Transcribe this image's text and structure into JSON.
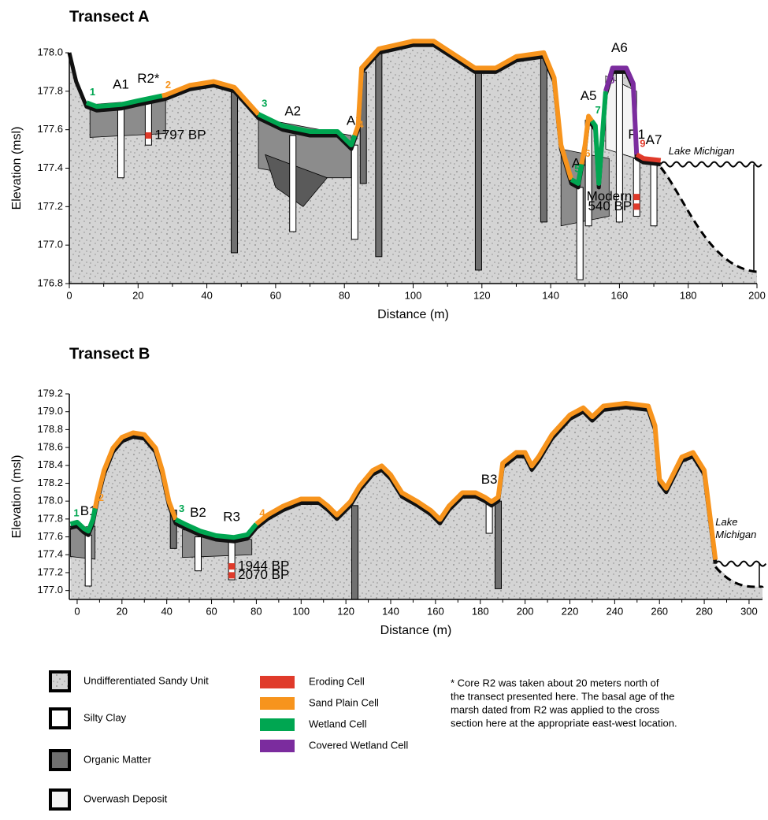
{
  "chart_data": [
    {
      "type": "profile",
      "title": "Transect A",
      "xlabel": "Distance (m)",
      "ylabel": "Elevation (msl)",
      "xlim": [
        0,
        200
      ],
      "ylim": [
        176.8,
        178.0
      ],
      "xticks": [
        0,
        20,
        40,
        60,
        80,
        100,
        120,
        140,
        160,
        180,
        200
      ],
      "yticks": [
        176.8,
        {
          "value": 177,
          "label": "177.0"
        },
        177.2,
        177.4,
        177.6,
        177.8,
        {
          "value": 178,
          "label": "178.0"
        }
      ],
      "surface": {
        "x": [
          0,
          2,
          5,
          8,
          15,
          20,
          28,
          35,
          42,
          48,
          55,
          62,
          70,
          78,
          82,
          84,
          85,
          90,
          100,
          106,
          112,
          118,
          124,
          130,
          138,
          141,
          143,
          146,
          148,
          150,
          151,
          153,
          154,
          156,
          158,
          162,
          164,
          165,
          167,
          172
        ],
        "y": [
          178.0,
          177.85,
          177.72,
          177.7,
          177.71,
          177.73,
          177.76,
          177.81,
          177.83,
          177.8,
          177.66,
          177.6,
          177.57,
          177.57,
          177.5,
          177.6,
          177.9,
          178.0,
          178.04,
          178.04,
          177.97,
          177.9,
          177.9,
          177.96,
          177.98,
          177.85,
          177.5,
          177.32,
          177.3,
          177.5,
          177.65,
          177.6,
          177.3,
          177.78,
          177.9,
          177.9,
          177.82,
          177.45,
          177.43,
          177.42
        ]
      },
      "cells": [
        {
          "label": "1",
          "color": "#00a651",
          "x": [
            5,
            27
          ]
        },
        {
          "label": "2",
          "color": "#f7941d",
          "x": [
            27,
            55
          ]
        },
        {
          "label": "3",
          "color": "#00a651",
          "x": [
            55,
            83
          ]
        },
        {
          "label": "4",
          "color": "#f7941d",
          "x": [
            83,
            146
          ]
        },
        {
          "label": "5",
          "color": "#00a651",
          "x": [
            146,
            149
          ]
        },
        {
          "label": "6",
          "color": "#f7941d",
          "x": [
            149,
            152
          ]
        },
        {
          "label": "7",
          "color": "#00a651",
          "x": [
            152,
            156
          ]
        },
        {
          "label": "8",
          "color": "#7b2c9e",
          "x": [
            156,
            165
          ]
        },
        {
          "label": "9",
          "color": "#e03a2a",
          "x": [
            165,
            172
          ]
        }
      ],
      "deposits": [
        {
          "color": "#8c8c8c",
          "x": [
            6,
            28,
            28,
            6
          ],
          "y": [
            177.73,
            177.76,
            177.58,
            177.56
          ]
        },
        {
          "color": "#8c8c8c",
          "x": [
            55,
            82,
            82,
            70,
            55
          ],
          "y": [
            177.66,
            177.57,
            177.35,
            177.35,
            177.4
          ]
        },
        {
          "color": "#5a5a5a",
          "x": [
            57,
            75,
            68,
            60
          ],
          "y": [
            177.47,
            177.35,
            177.2,
            177.3
          ]
        },
        {
          "color": "#8c8c8c",
          "x": [
            143,
            157,
            157,
            143
          ],
          "y": [
            177.5,
            177.45,
            177.15,
            177.1
          ]
        },
        {
          "color": "#f4f4f4",
          "x": [
            156,
            165,
            165,
            156
          ],
          "y": [
            177.88,
            177.8,
            177.45,
            177.5
          ]
        }
      ],
      "cores": [
        {
          "label": "A1",
          "x": 15,
          "top": 177.71,
          "bottom": 177.35,
          "color": "#ffffff"
        },
        {
          "label": "R2*",
          "x": 23,
          "top": 177.74,
          "bottom": 177.52,
          "color": "#ffffff"
        },
        {
          "label": null,
          "x": 48,
          "top": 177.8,
          "bottom": 176.96,
          "color": "#707070"
        },
        {
          "label": "A2",
          "x": 65,
          "top": 177.57,
          "bottom": 177.07,
          "color": "#ffffff"
        },
        {
          "label": "A3",
          "x": 83,
          "top": 177.52,
          "bottom": 177.03,
          "color": "#ffffff"
        },
        {
          "label": null,
          "x": 85.5,
          "top": 177.9,
          "bottom": 177.32,
          "color": "#707070"
        },
        {
          "label": null,
          "x": 90,
          "top": 178.0,
          "bottom": 176.94,
          "color": "#707070"
        },
        {
          "label": null,
          "x": 119,
          "top": 177.9,
          "bottom": 176.87,
          "color": "#707070"
        },
        {
          "label": null,
          "x": 138,
          "top": 177.98,
          "bottom": 177.12,
          "color": "#707070"
        },
        {
          "label": "A4",
          "x": 148.5,
          "top": 177.3,
          "bottom": 176.82,
          "color": "#ffffff"
        },
        {
          "label": "A5",
          "x": 151,
          "top": 177.65,
          "bottom": 177.1,
          "color": "#ffffff"
        },
        {
          "label": "A6",
          "x": 160,
          "top": 177.9,
          "bottom": 177.12,
          "color": "#ffffff"
        },
        {
          "label": "R1",
          "x": 165,
          "top": 177.45,
          "bottom": 177.15,
          "color": "#ffffff"
        },
        {
          "label": "A7",
          "x": 170,
          "top": 177.42,
          "bottom": 177.1,
          "color": "#ffffff"
        }
      ],
      "dates": [
        {
          "label": "1797 BP",
          "x": 23,
          "y": 177.57
        },
        {
          "label": "Modern",
          "x": 165,
          "y": 177.25
        },
        {
          "label": "540 BP",
          "x": 165,
          "y": 177.2
        }
      ],
      "lake_label": [
        "Lake Michigan"
      ]
    },
    {
      "type": "profile",
      "title": "Transect B",
      "xlabel": "Distance (m)",
      "ylabel": "Elevation (msl)",
      "xlim": [
        -3.5,
        306
      ],
      "ylim": [
        176.9,
        179.2
      ],
      "xticks": [
        0,
        20,
        40,
        60,
        80,
        100,
        120,
        140,
        160,
        180,
        200,
        220,
        240,
        260,
        280,
        300
      ],
      "yticks": [
        {
          "value": 177,
          "label": "177.0"
        },
        177.2,
        177.4,
        177.6,
        177.8,
        {
          "value": 178,
          "label": "178.0"
        },
        178.2,
        178.4,
        178.6,
        178.8,
        {
          "value": 179,
          "label": "179.0"
        },
        179.2
      ],
      "surface": {
        "x": [
          -3,
          0,
          3,
          5,
          7,
          9,
          12,
          16,
          20,
          25,
          30,
          35,
          38,
          41,
          44,
          48,
          55,
          62,
          70,
          76,
          80,
          85,
          92,
          100,
          108,
          112,
          116,
          122,
          126,
          132,
          136,
          140,
          145,
          152,
          158,
          162,
          166,
          172,
          178,
          182,
          185,
          188,
          190,
          196,
          200,
          203,
          206,
          212,
          220,
          226,
          230,
          235,
          245,
          255,
          258,
          260,
          263,
          267,
          270,
          275,
          280,
          283,
          285
        ],
        "y": [
          177.7,
          177.72,
          177.65,
          177.62,
          177.75,
          178.0,
          178.3,
          178.55,
          178.67,
          178.72,
          178.7,
          178.55,
          178.3,
          177.95,
          177.75,
          177.7,
          177.62,
          177.57,
          177.55,
          177.58,
          177.7,
          177.8,
          177.9,
          177.98,
          177.98,
          177.9,
          177.8,
          177.95,
          178.12,
          178.3,
          178.35,
          178.25,
          178.05,
          177.95,
          177.85,
          177.75,
          177.9,
          178.05,
          178.05,
          178.0,
          177.95,
          178.0,
          178.38,
          178.5,
          178.5,
          178.35,
          178.45,
          178.7,
          178.92,
          179.0,
          178.9,
          179.02,
          179.05,
          179.02,
          178.8,
          178.2,
          178.1,
          178.3,
          178.45,
          178.5,
          178.3,
          177.7,
          177.3
        ]
      },
      "cells": [
        {
          "label": "1",
          "color": "#00a651",
          "x": [
            -3,
            8
          ]
        },
        {
          "label": "2",
          "color": "#f7941d",
          "x": [
            8,
            44
          ]
        },
        {
          "label": "3",
          "color": "#00a651",
          "x": [
            44,
            80
          ]
        },
        {
          "label": "4",
          "color": "#f7941d",
          "x": [
            80,
            285
          ]
        }
      ],
      "deposits": [
        {
          "color": "#8c8c8c",
          "x": [
            -3,
            8,
            8,
            -3
          ],
          "y": [
            177.7,
            177.72,
            177.35,
            177.38
          ]
        },
        {
          "color": "#8c8c8c",
          "x": [
            47,
            78,
            78,
            47
          ],
          "y": [
            177.68,
            177.57,
            177.4,
            177.37
          ]
        }
      ],
      "cores": [
        {
          "label": "B1",
          "x": 5,
          "top": 177.62,
          "bottom": 177.05,
          "color": "#ffffff"
        },
        {
          "label": null,
          "x": 43,
          "top": 177.9,
          "bottom": 177.47,
          "color": "#707070"
        },
        {
          "label": "B2",
          "x": 54,
          "top": 177.6,
          "bottom": 177.22,
          "color": "#ffffff"
        },
        {
          "label": "R3",
          "x": 69,
          "top": 177.55,
          "bottom": 177.12,
          "color": "#ffffff"
        },
        {
          "label": null,
          "x": 124,
          "top": 177.95,
          "bottom": 176.9,
          "color": "#707070"
        },
        {
          "label": "B3",
          "x": 184,
          "top": 177.97,
          "bottom": 177.64,
          "color": "#ffffff"
        },
        {
          "label": null,
          "x": 188,
          "top": 178.0,
          "bottom": 177.02,
          "color": "#707070"
        }
      ],
      "dates": [
        {
          "label": "1944 BP",
          "x": 69,
          "y": 177.27
        },
        {
          "label": "2070 BP",
          "x": 69,
          "y": 177.17
        }
      ],
      "lake_label": [
        "Lake",
        "Michigan"
      ]
    }
  ],
  "legend": [
    {
      "name": "Undifferentiated Sandy Unit",
      "color": "#d4d4d4"
    },
    {
      "name": "Silty Clay",
      "color": "#ffffff"
    },
    {
      "name": "Organic Matter",
      "color": "#707070"
    },
    {
      "name": "Overwash Deposit",
      "color": "#f4f4f4"
    },
    {
      "name": "Eroding Cell",
      "color": "#e03a2a"
    },
    {
      "name": "Sand Plain Cell",
      "color": "#f7941d"
    },
    {
      "name": "Wetland Cell",
      "color": "#00a651"
    },
    {
      "name": "Covered Wetland Cell",
      "color": "#7b2c9e"
    }
  ],
  "footnote": [
    "* Core R2 was taken about 20 meters north of",
    "the transect presented here. The basal age of the",
    "marsh dated from R2 was applied to the cross",
    "section here at the appropriate east-west location."
  ]
}
